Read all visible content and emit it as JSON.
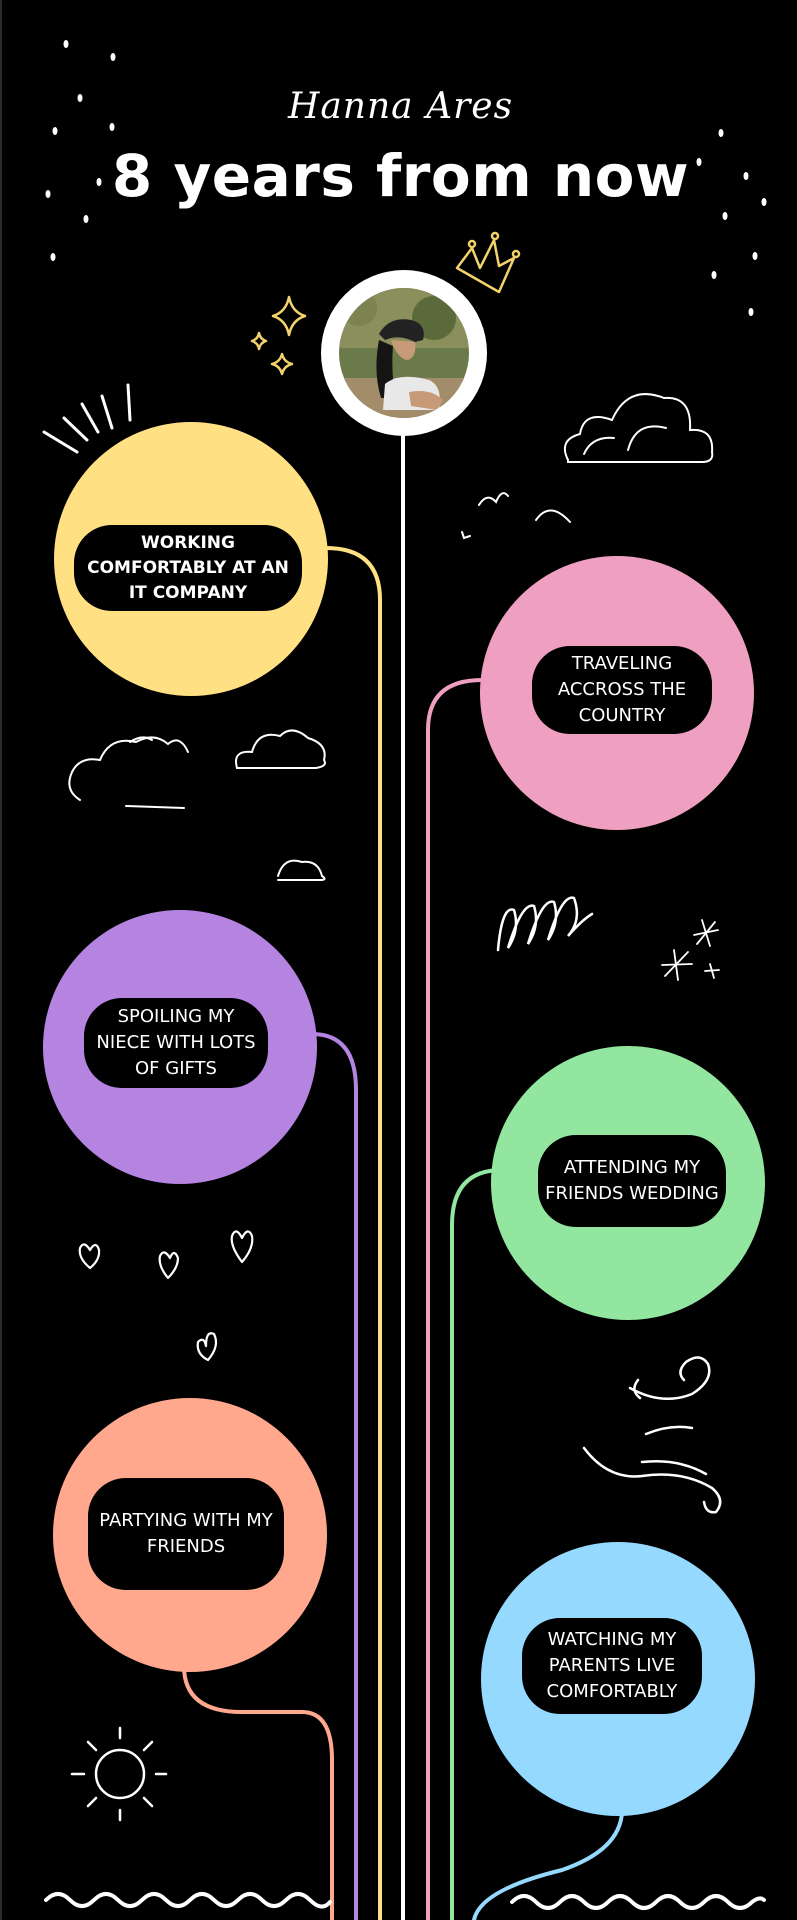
{
  "header": {
    "name": "Hanna Ares",
    "title": "8 years from now"
  },
  "goals": [
    {
      "text": "WORKING COMFORTABLY AT AN IT COMPANY",
      "color": "#FFE083"
    },
    {
      "text": "TRAVELING ACCROSS THE COUNTRY",
      "color": "#EFA0C0"
    },
    {
      "text": "SPOILING MY NIECE WITH LOTS OF GIFTS",
      "color": "#B484E0"
    },
    {
      "text": "ATTENDING MY FRIENDS WEDDING",
      "color": "#92E6A0"
    },
    {
      "text": "PARTYING WITH MY FRIENDS",
      "color": "#FFA88E"
    },
    {
      "text": "WATCHING MY PARENTS LIVE COMFORTABLY",
      "color": "#95D9FF"
    }
  ],
  "colors": {
    "background": "#000000",
    "trunk": "#FFFFFF",
    "accent_gold": "#F2D36B"
  },
  "icons": [
    "raindrops-icon",
    "crown-icon",
    "sparkle-icon",
    "cloud-icon",
    "bird-icon",
    "heart-icon",
    "swirl-icon",
    "wind-icon",
    "sun-icon",
    "wave-icon",
    "avatar-photo"
  ]
}
